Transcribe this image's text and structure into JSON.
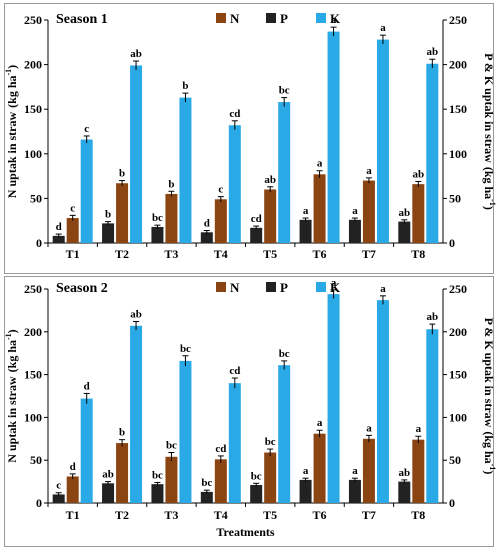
{
  "chart_data": [
    {
      "type": "bar",
      "title": "Season 1",
      "categories": [
        "T1",
        "T2",
        "T3",
        "T4",
        "T5",
        "T6",
        "T7",
        "T8"
      ],
      "ylabel": "N uptak in straw",
      "ylabel_unit": "(kg ha",
      "ylabel_sup": "-1",
      "ylabel_close": ")",
      "y2label": "P & K uptak in straw",
      "y2label_unit": "(kg ha",
      "y2label_sup": "-1",
      "y2label_close": ")",
      "ylim": [
        0,
        250
      ],
      "y2lim": [
        0,
        250
      ],
      "yticks": [
        0,
        50,
        100,
        150,
        200,
        250
      ],
      "y2ticks": [
        0,
        50,
        100,
        150,
        200,
        250
      ],
      "legend_position": "top",
      "series": [
        {
          "name": "N",
          "color": "#8b4513",
          "values": [
            28,
            67,
            55,
            49,
            60,
            77,
            70,
            66
          ],
          "errors": [
            3,
            3,
            3,
            3,
            3,
            4,
            3,
            3
          ],
          "labels": [
            "c",
            "b",
            "b",
            "c",
            "ab",
            "a",
            "a",
            "ab"
          ]
        },
        {
          "name": "P",
          "color": "#222222",
          "values": [
            8,
            22,
            18,
            12,
            17,
            26,
            26,
            24
          ],
          "errors": [
            2,
            2,
            2,
            2,
            2,
            2,
            2,
            2
          ],
          "labels": [
            "d",
            "b",
            "bc",
            "d",
            "cd",
            "a",
            "a",
            "ab"
          ]
        },
        {
          "name": "K",
          "color": "#29a9e6",
          "values": [
            116,
            199,
            163,
            132,
            158,
            237,
            228,
            201
          ],
          "errors": [
            4,
            5,
            5,
            5,
            5,
            5,
            5,
            5
          ],
          "labels": [
            "c",
            "ab",
            "b",
            "cd",
            "bc",
            "a",
            "a",
            "ab"
          ]
        }
      ]
    },
    {
      "type": "bar",
      "title": "Season 2",
      "categories": [
        "T1",
        "T2",
        "T3",
        "T4",
        "T5",
        "T6",
        "T7",
        "T8"
      ],
      "xlabel": "Treatments",
      "ylabel": "N uptak in straw",
      "ylabel_unit": "(kg ha",
      "ylabel_sup": "-1",
      "ylabel_close": ")",
      "y2label": "P & K uptak in straw",
      "y2label_unit": "(kg ha",
      "y2label_sup": "-1",
      "y2label_close": ")",
      "ylim": [
        0,
        250
      ],
      "y2lim": [
        0,
        250
      ],
      "yticks": [
        0,
        50,
        100,
        150,
        200,
        250
      ],
      "y2ticks": [
        0,
        50,
        100,
        150,
        200,
        250
      ],
      "legend_position": "top",
      "series": [
        {
          "name": "N",
          "color": "#8b4513",
          "values": [
            31,
            70,
            54,
            51,
            59,
            81,
            75,
            74
          ],
          "errors": [
            3,
            4,
            5,
            4,
            4,
            4,
            4,
            4
          ],
          "labels": [
            "d",
            "b",
            "bc",
            "cd",
            "bc",
            "a",
            "a",
            "a"
          ]
        },
        {
          "name": "P",
          "color": "#222222",
          "values": [
            10,
            23,
            22,
            13,
            21,
            27,
            27,
            25
          ],
          "errors": [
            2,
            2,
            2,
            2,
            2,
            2,
            2,
            2
          ],
          "labels": [
            "c",
            "ab",
            "bc",
            "bc",
            "bc",
            "a",
            "a",
            "ab"
          ]
        },
        {
          "name": "K",
          "color": "#29a9e6",
          "values": [
            122,
            207,
            166,
            140,
            161,
            244,
            237,
            203
          ],
          "errors": [
            6,
            5,
            6,
            6,
            5,
            5,
            5,
            6
          ],
          "labels": [
            "d",
            "ab",
            "bc",
            "cd",
            "bc",
            "a",
            "a",
            "ab"
          ]
        }
      ]
    }
  ]
}
